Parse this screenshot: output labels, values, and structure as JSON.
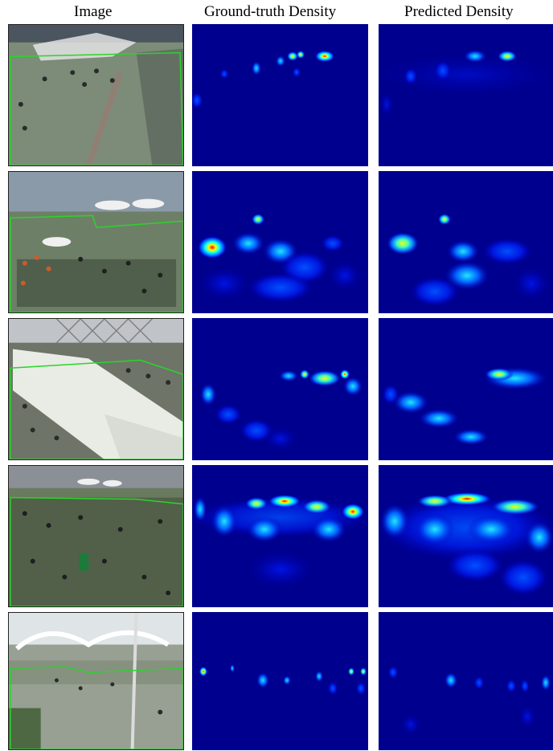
{
  "headers": {
    "image": "Image",
    "ground_truth": "Ground-truth Density",
    "predicted": "Predicted Density"
  },
  "colors": {
    "density_background": "#00008f",
    "roi_outline": "#2bd42b",
    "colormap": [
      "#00008f",
      "#0000ff",
      "#00aaff",
      "#00ffff",
      "#80ff80",
      "#ffff00",
      "#ff8000",
      "#ff0000"
    ]
  },
  "rows": [
    {
      "scene": "plaza-with-tents",
      "gt_spots": "upper strip",
      "pred_spots": "upper strip"
    },
    {
      "scene": "crowd-under-umbrellas",
      "gt_spots": "left hotspot",
      "pred_spots": "diagonal band"
    },
    {
      "scene": "queue-under-awning",
      "gt_spots": "upper right cluster",
      "pred_spots": "diagonal band"
    },
    {
      "scene": "dense-crowd",
      "gt_spots": "upper wide band",
      "pred_spots": "upper wide band"
    },
    {
      "scene": "street-with-canopy",
      "gt_spots": "sparse points",
      "pred_spots": "sparse points"
    }
  ]
}
